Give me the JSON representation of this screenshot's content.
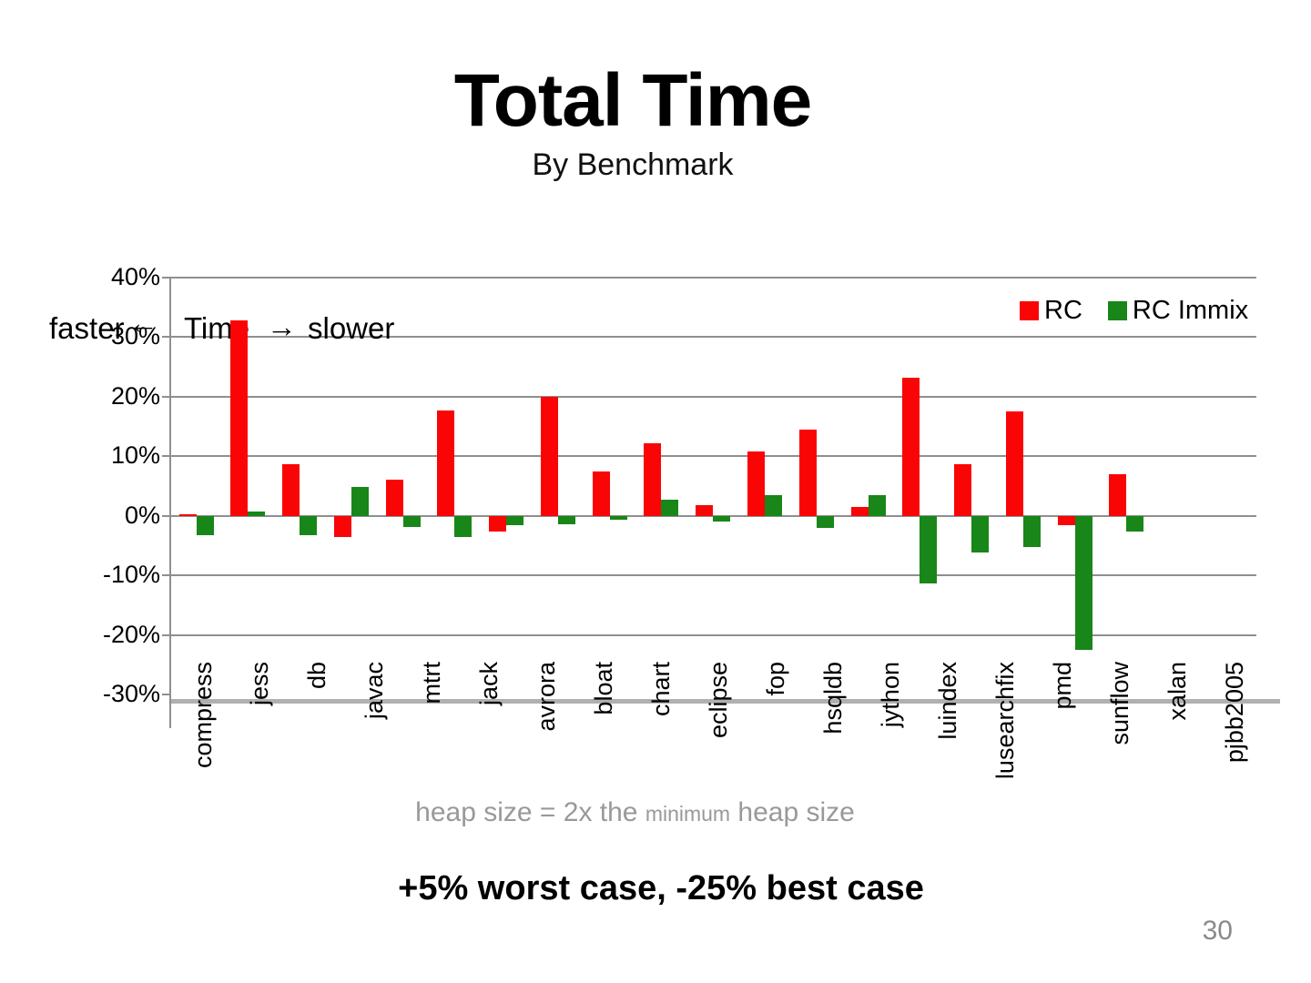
{
  "slide": {
    "title": "Total Time",
    "subtitle": "By Benchmark",
    "caption": {
      "pre": "heap size = 2x the ",
      "small": "minimum",
      "post": " heap size"
    },
    "takeaway": "+5% worst case, -25% best case",
    "page_number": "30"
  },
  "chart_data": {
    "type": "bar",
    "title": "Total Time",
    "subtitle": "By Benchmark",
    "unit": "%",
    "categories": [
      "compress",
      "jess",
      "db",
      "javac",
      "mtrt",
      "jack",
      "avrora",
      "bloat",
      "chart",
      "eclipse",
      "fop",
      "hsqldb",
      "jython",
      "luindex",
      "lusearchfix",
      "pmd",
      "sunflow",
      "xalan",
      "pjbb2005"
    ],
    "series": [
      {
        "name": "RC",
        "color": "#fa0505",
        "values": [
          0.3,
          32.8,
          8.7,
          -3.5,
          6.0,
          17.6,
          -2.7,
          20.0,
          7.5,
          12.1,
          1.8,
          10.8,
          14.5,
          1.5,
          23.2,
          8.7,
          17.5,
          -1.5,
          7.0
        ]
      },
      {
        "name": "RC Immix",
        "color": "#188618",
        "values": [
          -3.2,
          0.7,
          -3.2,
          4.9,
          -1.9,
          -3.5,
          -1.5,
          -1.4,
          -0.6,
          2.7,
          -1.0,
          3.4,
          -2.0,
          3.5,
          -11.3,
          -6.2,
          -5.2,
          -22.5,
          -2.6
        ]
      }
    ],
    "y_ticks": [
      {
        "label": "40%",
        "value": 40
      },
      {
        "label": "30%",
        "value": 30
      },
      {
        "label": "20%",
        "value": 20
      },
      {
        "label": "10%",
        "value": 10
      },
      {
        "label": "0%",
        "value": 0
      },
      {
        "label": "-10%",
        "value": -10
      },
      {
        "label": "-20%",
        "value": -20
      },
      {
        "label": "-30%",
        "value": -30
      }
    ],
    "ylim": [
      -30,
      40
    ],
    "grid": true,
    "legend_position": "top-right",
    "annotation": {
      "faster_label": "faster",
      "arrow_left": "←",
      "axis_label": "Time",
      "arrow_right": "→",
      "slower_label": "slower"
    }
  }
}
